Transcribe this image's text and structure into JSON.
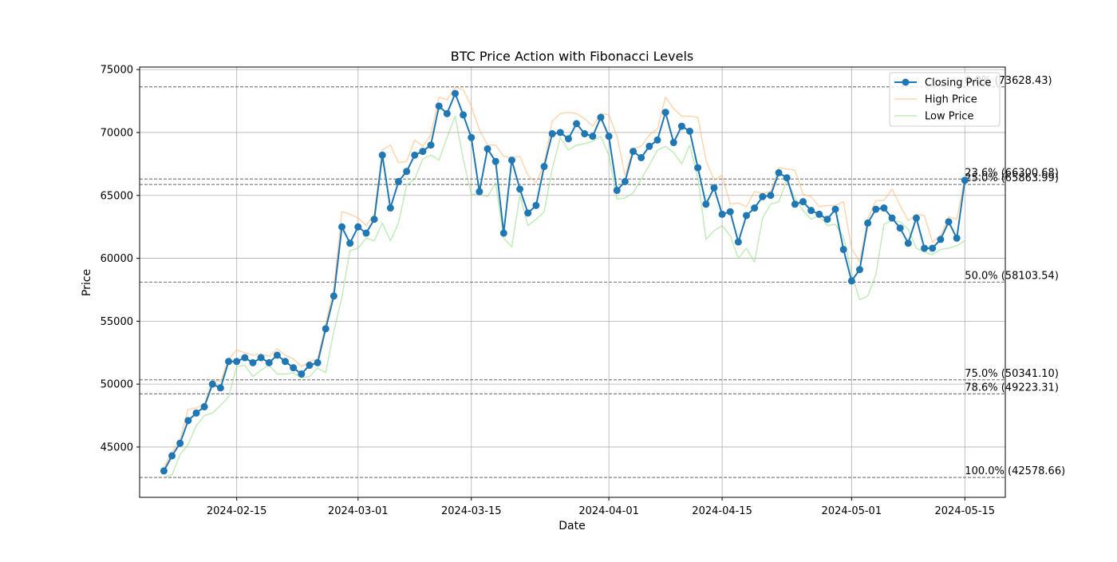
{
  "chart_data": {
    "type": "line",
    "title": "BTC Price Action with Fibonacci Levels",
    "xlabel": "Date",
    "ylabel": "Price",
    "xlim": [
      "2024-02-03",
      "2024-05-20"
    ],
    "ylim": [
      41000,
      75200
    ],
    "grid": true,
    "legend_position": "top-right",
    "x_ticks": [
      "2024-02-15",
      "2024-03-01",
      "2024-03-15",
      "2024-04-01",
      "2024-04-15",
      "2024-05-01",
      "2024-05-15"
    ],
    "y_ticks": [
      45000,
      50000,
      55000,
      60000,
      65000,
      70000,
      75000
    ],
    "dates": [
      "2024-02-06",
      "2024-02-07",
      "2024-02-08",
      "2024-02-09",
      "2024-02-10",
      "2024-02-11",
      "2024-02-12",
      "2024-02-13",
      "2024-02-14",
      "2024-02-15",
      "2024-02-16",
      "2024-02-17",
      "2024-02-18",
      "2024-02-19",
      "2024-02-20",
      "2024-02-21",
      "2024-02-22",
      "2024-02-23",
      "2024-02-24",
      "2024-02-25",
      "2024-02-26",
      "2024-02-27",
      "2024-02-28",
      "2024-02-29",
      "2024-03-01",
      "2024-03-02",
      "2024-03-03",
      "2024-03-04",
      "2024-03-05",
      "2024-03-06",
      "2024-03-07",
      "2024-03-08",
      "2024-03-09",
      "2024-03-10",
      "2024-03-11",
      "2024-03-12",
      "2024-03-13",
      "2024-03-14",
      "2024-03-15",
      "2024-03-16",
      "2024-03-17",
      "2024-03-18",
      "2024-03-19",
      "2024-03-20",
      "2024-03-21",
      "2024-03-22",
      "2024-03-23",
      "2024-03-24",
      "2024-03-25",
      "2024-03-26",
      "2024-03-27",
      "2024-03-28",
      "2024-03-29",
      "2024-03-30",
      "2024-03-31",
      "2024-04-01",
      "2024-04-02",
      "2024-04-03",
      "2024-04-04",
      "2024-04-05",
      "2024-04-06",
      "2024-04-07",
      "2024-04-08",
      "2024-04-09",
      "2024-04-10",
      "2024-04-11",
      "2024-04-12",
      "2024-04-13",
      "2024-04-14",
      "2024-04-15",
      "2024-04-16",
      "2024-04-17",
      "2024-04-18",
      "2024-04-19",
      "2024-04-20",
      "2024-04-21",
      "2024-04-22",
      "2024-04-23",
      "2024-04-24",
      "2024-04-25",
      "2024-04-26",
      "2024-04-27",
      "2024-04-28",
      "2024-04-29",
      "2024-04-30",
      "2024-05-01",
      "2024-05-02",
      "2024-05-03",
      "2024-05-04",
      "2024-05-05",
      "2024-05-06",
      "2024-05-07",
      "2024-05-08",
      "2024-05-09",
      "2024-05-10",
      "2024-05-11",
      "2024-05-12",
      "2024-05-13",
      "2024-05-14",
      "2024-05-15"
    ],
    "series": [
      {
        "name": "Closing Price",
        "color": "#1f77b4",
        "marker": "circle",
        "values": [
          43100,
          44300,
          45300,
          47100,
          47700,
          48200,
          50000,
          49700,
          51800,
          51800,
          52100,
          51700,
          52100,
          51700,
          52300,
          51800,
          51300,
          50800,
          51500,
          51700,
          54400,
          57000,
          62500,
          61200,
          62500,
          62000,
          63100,
          68200,
          64000,
          66100,
          66900,
          68200,
          68500,
          69000,
          72100,
          71500,
          73100,
          71400,
          69600,
          65300,
          68700,
          67700,
          62000,
          67800,
          65500,
          63600,
          64200,
          67300,
          69900,
          70000,
          69500,
          70700,
          69900,
          69700,
          71200,
          69700,
          65400,
          66100,
          68500,
          68000,
          68900,
          69400,
          71600,
          69200,
          70500,
          70100,
          67200,
          64300,
          65600,
          63500,
          63700,
          61300,
          63400,
          64000,
          64900,
          65000,
          66800,
          66400,
          64300,
          64500,
          63800,
          63500,
          63100,
          63900,
          60700,
          58200,
          59100,
          62800,
          63900,
          64000,
          63200,
          62400,
          61200,
          63200,
          60800,
          60800,
          61500,
          62900,
          61600,
          66200
        ]
      },
      {
        "name": "High Price",
        "color": "#ffbb78",
        "values": [
          43400,
          44600,
          45600,
          48000,
          48100,
          48400,
          50300,
          50200,
          52000,
          52700,
          52500,
          52300,
          52400,
          52200,
          52800,
          52300,
          52000,
          51400,
          51800,
          52000,
          54800,
          57600,
          63700,
          63500,
          63200,
          62600,
          63500,
          68600,
          69000,
          67600,
          67700,
          69400,
          68900,
          69800,
          72800,
          72600,
          73600,
          73400,
          72100,
          70200,
          69000,
          69000,
          68100,
          68000,
          68100,
          66600,
          66000,
          67500,
          70900,
          71500,
          71600,
          71500,
          71100,
          70500,
          71500,
          71400,
          69700,
          66600,
          68700,
          68900,
          69800,
          70300,
          72800,
          71900,
          71300,
          71300,
          71200,
          67800,
          66200,
          66600,
          64300,
          64400,
          64100,
          65300,
          65200,
          65300,
          67200,
          67100,
          67000,
          65100,
          64900,
          64100,
          64200,
          64200,
          64500,
          60800,
          59700,
          63100,
          64600,
          64600,
          65500,
          64200,
          63000,
          63500,
          63400,
          61300,
          61800,
          63300,
          63100,
          66400
        ]
      },
      {
        "name": "Low Price",
        "color": "#98df8a",
        "values": [
          42600,
          42800,
          44400,
          45200,
          46700,
          47500,
          47700,
          48300,
          49000,
          51400,
          51500,
          50600,
          51100,
          51500,
          50800,
          50800,
          50900,
          50500,
          50600,
          51300,
          50900,
          54200,
          56900,
          60600,
          60800,
          61600,
          61400,
          62800,
          61400,
          62800,
          65800,
          66300,
          67900,
          68200,
          67800,
          69600,
          71300,
          67900,
          65100,
          65100,
          64900,
          66000,
          61600,
          60900,
          65000,
          62600,
          63100,
          63700,
          67100,
          69600,
          68600,
          69000,
          69100,
          69300,
          69700,
          68200,
          64700,
          64800,
          65200,
          66300,
          67400,
          68600,
          68900,
          68400,
          67500,
          69000,
          66400,
          61500,
          62200,
          62600,
          61800,
          60000,
          60800,
          59700,
          63200,
          64300,
          64500,
          66200,
          64800,
          63800,
          63100,
          63400,
          62600,
          62700,
          61700,
          58800,
          56700,
          57000,
          58700,
          62700,
          63000,
          62900,
          62300,
          60800,
          60500,
          60300,
          60700,
          60800,
          61000,
          61400
        ]
      }
    ],
    "fibonacci_levels": [
      {
        "label": "0.0% (73628.43)",
        "value": 73628.43
      },
      {
        "label": "23.6% (66300.68)",
        "value": 66300.68
      },
      {
        "label": "25.0% (65863.99)",
        "value": 65863.99
      },
      {
        "label": "50.0% (58103.54)",
        "value": 58103.54
      },
      {
        "label": "75.0% (50341.10)",
        "value": 50341.1
      },
      {
        "label": "78.6% (49223.31)",
        "value": 49223.31
      },
      {
        "label": "100.0% (42578.66)",
        "value": 42578.66
      }
    ],
    "fib_line_color": "#808080"
  }
}
